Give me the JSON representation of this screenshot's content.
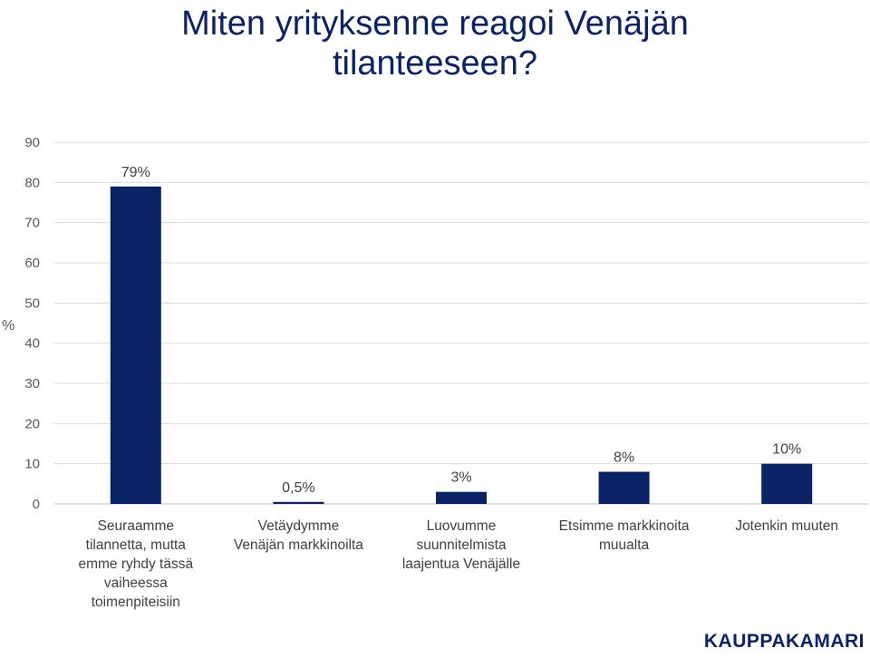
{
  "title_lines": [
    "Miten yrityksenne reagoi Venäjän",
    "tilanteeseen?"
  ],
  "brand": "KAUPPAKAMARI",
  "colors": {
    "bar": "#0a2266",
    "title": "#0a2266",
    "grid": "#d9d9d9"
  },
  "chart_data": {
    "type": "bar",
    "title": "Miten yrityksenne reagoi Venäjän tilanteeseen?",
    "ylabel": "%",
    "ylim": [
      0,
      90
    ],
    "yticks": [
      0,
      10,
      20,
      30,
      40,
      50,
      60,
      70,
      80,
      90
    ],
    "grid": true,
    "categories": [
      [
        "Seuraamme",
        "tilannetta, mutta",
        "emme ryhdy tässä",
        "vaiheessa",
        "toimenpiteisiin"
      ],
      [
        "Vetäydymme",
        "Venäjän markkinoilta"
      ],
      [
        "Luovumme",
        "suunnitelmista",
        "laajentua Venäjälle"
      ],
      [
        "Etsimme markkinoita",
        "muualta"
      ],
      [
        "Jotenkin muuten"
      ]
    ],
    "values": [
      79,
      0.5,
      3,
      8,
      10
    ],
    "data_labels": [
      "79%",
      "0,5%",
      "3%",
      "8%",
      "10%"
    ]
  }
}
